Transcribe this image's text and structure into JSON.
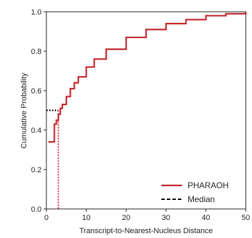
{
  "chart_data": {
    "type": "line",
    "xlabel": "Transcript-to-Nearest-Nucleus Distance",
    "ylabel": "Cumulative Probability",
    "xlim": [
      0,
      50
    ],
    "ylim": [
      0.0,
      1.0
    ],
    "x_ticks": [
      "0",
      "10",
      "20",
      "30",
      "40",
      "50"
    ],
    "y_ticks": [
      "0.0",
      "0.2",
      "0.4",
      "0.6",
      "0.8",
      "1.0"
    ],
    "grid": false,
    "legend_position": "bottom-right",
    "series": [
      {
        "name": "PHARAOH",
        "color": "#c4262e",
        "style": "step",
        "x": [
          0.5,
          1.5,
          2.0,
          2.5,
          3.0,
          3.5,
          4.0,
          5.0,
          6.0,
          7.0,
          8.0,
          10.0,
          12.0,
          15.0,
          20.0,
          25.0,
          30.0,
          35.0,
          40.0,
          45.0,
          50.0
        ],
        "y": [
          0.34,
          0.34,
          0.43,
          0.45,
          0.48,
          0.51,
          0.53,
          0.57,
          0.61,
          0.64,
          0.67,
          0.72,
          0.76,
          0.81,
          0.87,
          0.91,
          0.94,
          0.96,
          0.98,
          0.99,
          1.0
        ]
      }
    ],
    "median": {
      "name": "Median",
      "x": 3.0,
      "y": 0.5,
      "color": "#000000",
      "line_color": "#e0303a"
    }
  }
}
